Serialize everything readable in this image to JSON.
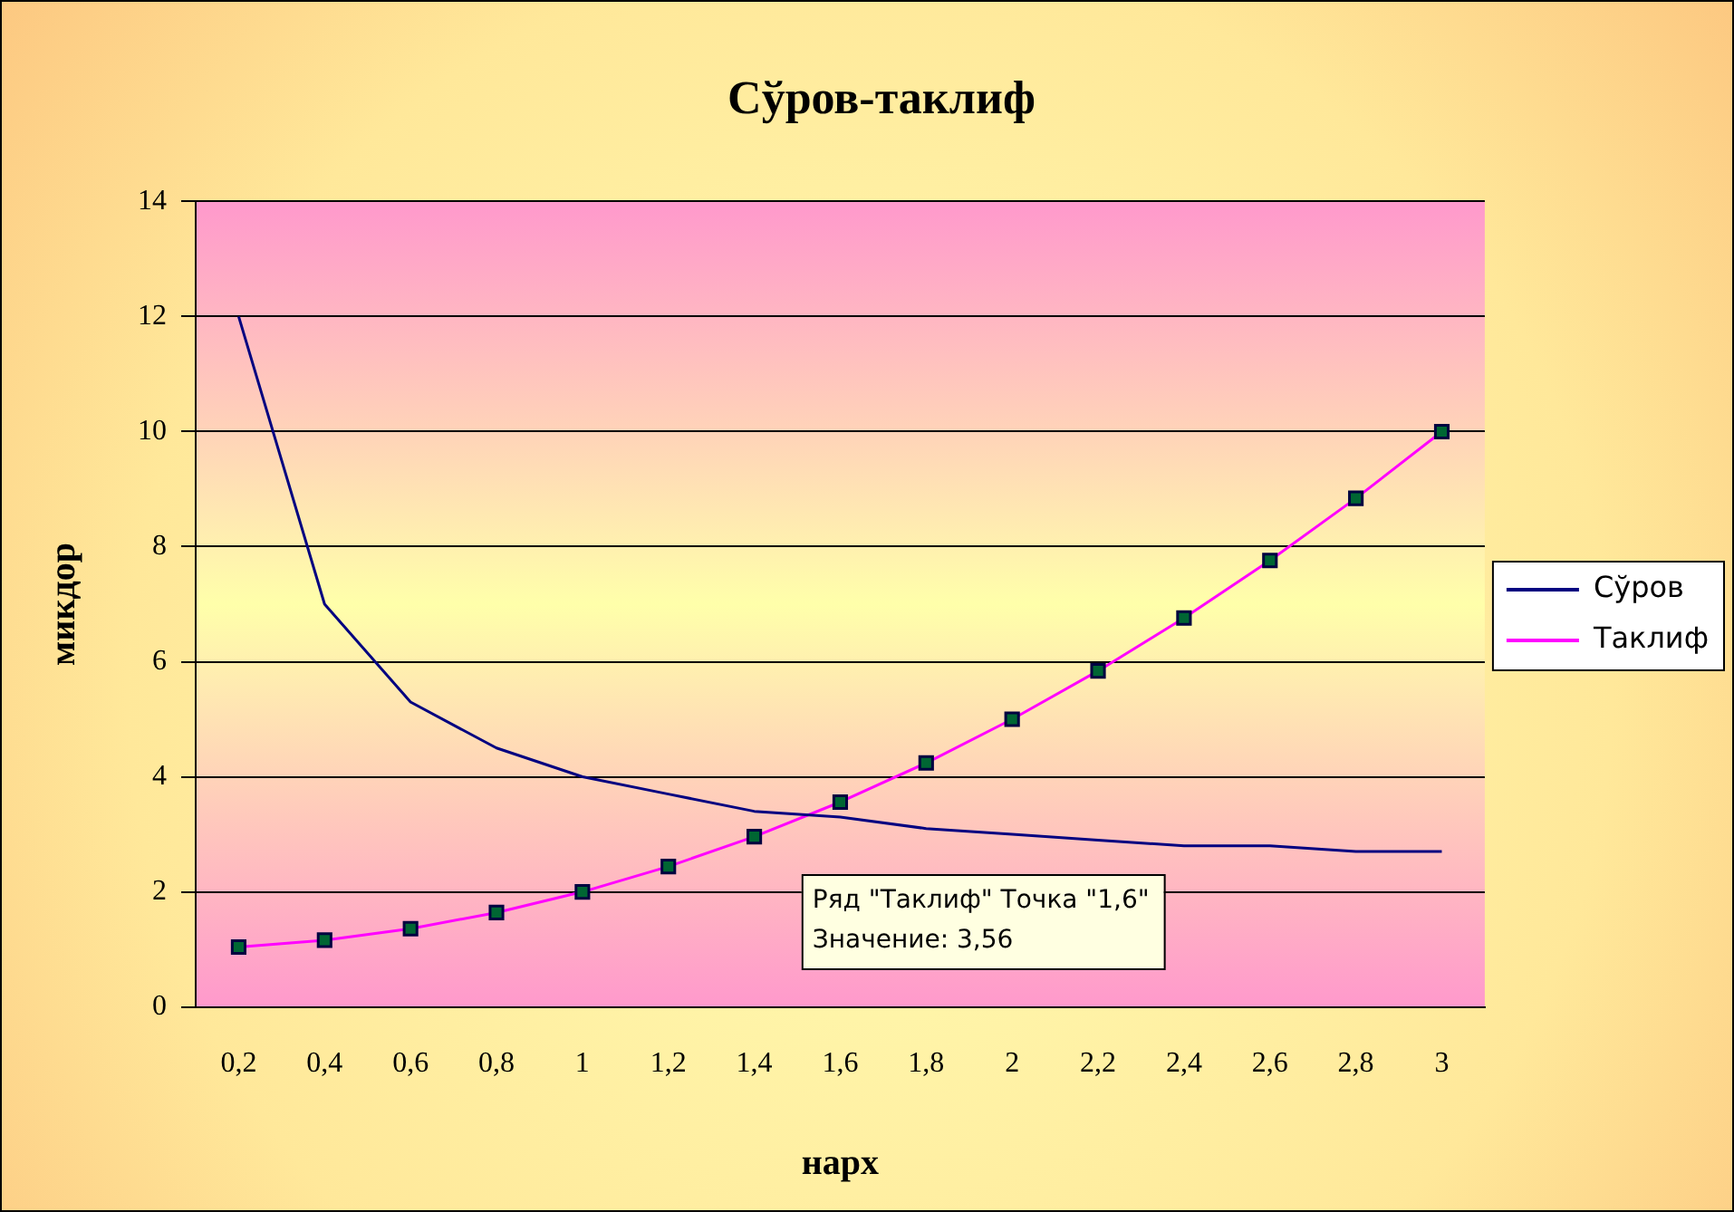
{
  "chart_data": {
    "type": "line",
    "title": "Сўров-таклиф",
    "xlabel": "нарх",
    "ylabel": "микдор",
    "categories": [
      "0,2",
      "0,4",
      "0,6",
      "0,8",
      "1",
      "1,2",
      "1,4",
      "1,6",
      "1,8",
      "2",
      "2,2",
      "2,4",
      "2,6",
      "2,8",
      "3"
    ],
    "series": [
      {
        "name": "Сўров",
        "color": "#000080",
        "marker": "none",
        "values": [
          12,
          7,
          5.3,
          4.5,
          4,
          3.7,
          3.4,
          3.3,
          3.1,
          3,
          2.9,
          2.8,
          2.8,
          2.7,
          2.7
        ]
      },
      {
        "name": "Таклиф",
        "color": "#ff00ff",
        "marker": "square",
        "values": [
          1.04,
          1.16,
          1.36,
          1.64,
          2,
          2.44,
          2.96,
          3.56,
          4.24,
          5,
          5.84,
          6.76,
          7.76,
          8.84,
          10
        ]
      }
    ],
    "ylim": [
      0,
      14
    ],
    "yticks": [
      0,
      2,
      4,
      6,
      8,
      10,
      12,
      14
    ],
    "grid": "y",
    "legend": "right",
    "line_style": "solid",
    "annotations": [
      "Ряд \"Таклиф\" Точка \"1,6\"\nЗначение: 3,56"
    ]
  }
}
